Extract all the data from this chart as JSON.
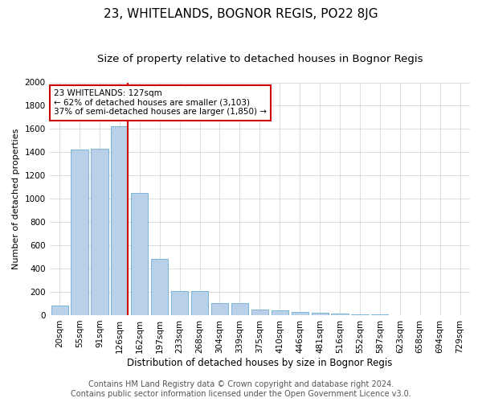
{
  "title": "23, WHITELANDS, BOGNOR REGIS, PO22 8JG",
  "subtitle": "Size of property relative to detached houses in Bognor Regis",
  "xlabel": "Distribution of detached houses by size in Bognor Regis",
  "ylabel": "Number of detached properties",
  "footer_line1": "Contains HM Land Registry data © Crown copyright and database right 2024.",
  "footer_line2": "Contains public sector information licensed under the Open Government Licence v3.0.",
  "categories": [
    "20sqm",
    "55sqm",
    "91sqm",
    "126sqm",
    "162sqm",
    "197sqm",
    "233sqm",
    "268sqm",
    "304sqm",
    "339sqm",
    "375sqm",
    "410sqm",
    "446sqm",
    "481sqm",
    "516sqm",
    "552sqm",
    "587sqm",
    "623sqm",
    "658sqm",
    "694sqm",
    "729sqm"
  ],
  "values": [
    80,
    1420,
    1430,
    1620,
    1050,
    480,
    205,
    205,
    100,
    100,
    48,
    40,
    25,
    20,
    15,
    10,
    5,
    3,
    3,
    2,
    1
  ],
  "bar_color": "#b8d0e8",
  "bar_edge_color": "#6aaed6",
  "ylim": [
    0,
    2000
  ],
  "yticks": [
    0,
    200,
    400,
    600,
    800,
    1000,
    1200,
    1400,
    1600,
    1800,
    2000
  ],
  "vline_x_index": 3,
  "vline_color": "#cc0000",
  "annotation_text": "23 WHITELANDS: 127sqm\n← 62% of detached houses are smaller (3,103)\n37% of semi-detached houses are larger (1,850) →",
  "annotation_box_color": "#ffffff",
  "annotation_box_edge": "#cc0000",
  "title_fontsize": 11,
  "subtitle_fontsize": 9.5,
  "xlabel_fontsize": 8.5,
  "ylabel_fontsize": 8,
  "tick_fontsize": 7.5,
  "footer_fontsize": 7,
  "annotation_fontsize": 7.5
}
